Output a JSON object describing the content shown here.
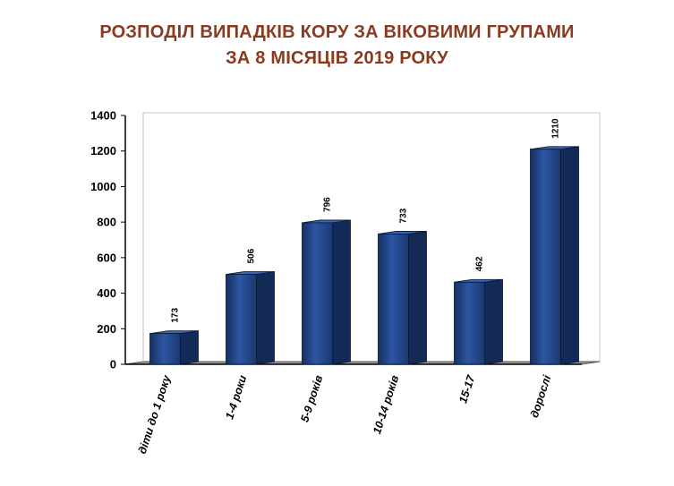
{
  "chart_data": {
    "type": "bar",
    "title_line1": "РОЗПОДІЛ ВИПАДКІВ КОРУ ЗА ВІКОВИМИ ГРУПАМИ",
    "title_line2": "ЗА 8 МІСЯЦІВ 2019 РОКУ",
    "categories": [
      "діти до 1 року",
      "1-4 роки",
      "5-9 років",
      "10-14 років",
      "15-17",
      "дорослі"
    ],
    "values": [
      173,
      506,
      796,
      733,
      462,
      1210
    ],
    "value_labels": [
      "173",
      "506",
      "796",
      "733",
      "462",
      "1210"
    ],
    "yticks": [
      "0",
      "200",
      "400",
      "600",
      "800",
      "1000",
      "1200",
      "1400"
    ],
    "ylim": [
      0,
      1400
    ],
    "grid": false,
    "legend": "none",
    "bar_color": "#1f3f7f"
  }
}
